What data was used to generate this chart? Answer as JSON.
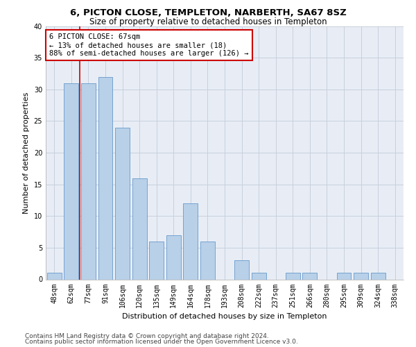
{
  "title": "6, PICTON CLOSE, TEMPLETON, NARBERTH, SA67 8SZ",
  "subtitle": "Size of property relative to detached houses in Templeton",
  "xlabel": "Distribution of detached houses by size in Templeton",
  "ylabel": "Number of detached properties",
  "categories": [
    "48sqm",
    "62sqm",
    "77sqm",
    "91sqm",
    "106sqm",
    "120sqm",
    "135sqm",
    "149sqm",
    "164sqm",
    "178sqm",
    "193sqm",
    "208sqm",
    "222sqm",
    "237sqm",
    "251sqm",
    "266sqm",
    "280sqm",
    "295sqm",
    "309sqm",
    "324sqm",
    "338sqm"
  ],
  "values": [
    1,
    31,
    31,
    32,
    24,
    16,
    6,
    7,
    12,
    6,
    0,
    3,
    1,
    0,
    1,
    1,
    0,
    1,
    1,
    1,
    0
  ],
  "bar_color": "#b8d0e8",
  "bar_edgecolor": "#6699cc",
  "redline_x": 1.5,
  "annotation_text": "6 PICTON CLOSE: 67sqm\n← 13% of detached houses are smaller (18)\n88% of semi-detached houses are larger (126) →",
  "annotation_box_facecolor": "#ffffff",
  "annotation_box_edgecolor": "#cc0000",
  "ylim": [
    0,
    40
  ],
  "yticks": [
    0,
    5,
    10,
    15,
    20,
    25,
    30,
    35,
    40
  ],
  "footer1": "Contains HM Land Registry data © Crown copyright and database right 2024.",
  "footer2": "Contains public sector information licensed under the Open Government Licence v3.0.",
  "plot_bg_color": "#e8edf5",
  "grid_color": "#c8d0dc",
  "title_fontsize": 9.5,
  "subtitle_fontsize": 8.5,
  "xlabel_fontsize": 8,
  "ylabel_fontsize": 8,
  "tick_fontsize": 7,
  "annot_fontsize": 7.5,
  "footer_fontsize": 6.5
}
